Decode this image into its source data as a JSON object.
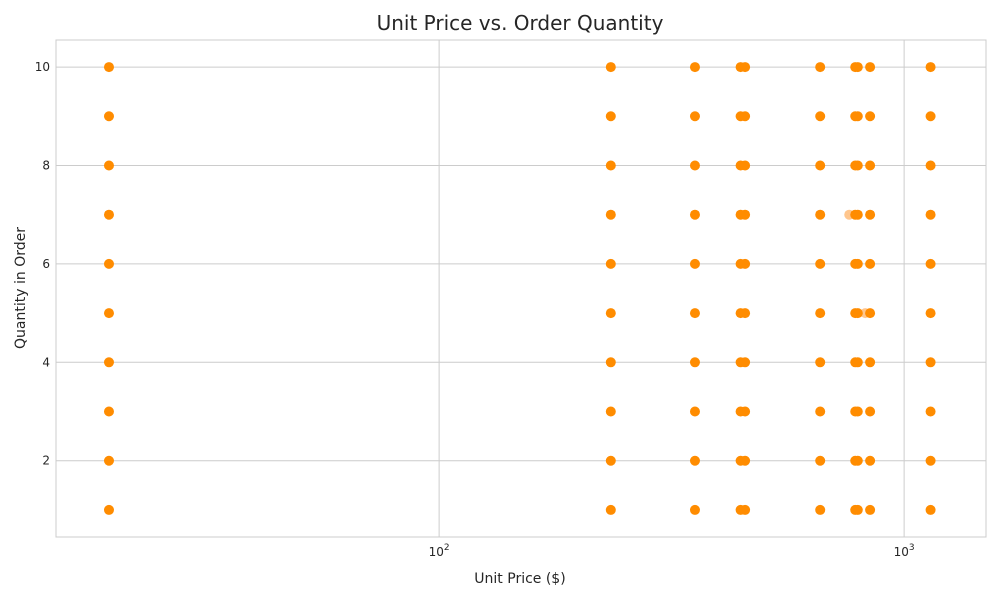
{
  "chart_data": {
    "type": "scatter",
    "title": "Unit Price vs. Order Quantity",
    "xlabel": "Unit Price ($)",
    "ylabel": "Quantity in Order",
    "xscale": "log",
    "xlim": [
      15,
      1500
    ],
    "ylim": [
      0.45,
      10.55
    ],
    "grid": true,
    "x_ticks": [
      {
        "value": 100,
        "label": "10",
        "exp": "2"
      },
      {
        "value": 1000,
        "label": "10",
        "exp": "3"
      }
    ],
    "y_ticks": [
      2,
      4,
      6,
      8,
      10
    ],
    "marker_color": "#ff8c00",
    "marker_faint_color": "#ffb870",
    "series": [
      {
        "x": [
          19.5,
          19.5,
          19.5,
          19.5,
          19.5,
          19.5,
          19.5,
          19.5,
          19.5,
          19.5,
          234,
          234,
          234,
          234,
          234,
          234,
          234,
          234,
          234,
          234,
          355,
          355,
          355,
          355,
          355,
          355,
          355,
          355,
          355,
          355,
          445,
          445,
          445,
          445,
          445,
          445,
          445,
          445,
          445,
          445,
          455,
          455,
          455,
          455,
          455,
          455,
          455,
          455,
          455,
          455,
          660,
          660,
          660,
          660,
          660,
          660,
          660,
          660,
          660,
          660,
          785,
          785,
          785,
          785,
          785,
          785,
          785,
          785,
          785,
          785,
          795,
          795,
          795,
          795,
          795,
          795,
          795,
          795,
          795,
          795,
          845,
          845,
          845,
          845,
          845,
          845,
          845,
          845,
          845,
          845,
          1140,
          1140,
          1140,
          1140,
          1140,
          1140,
          1140,
          1140,
          1140,
          1140
        ],
        "y": [
          1,
          2,
          3,
          4,
          5,
          6,
          7,
          8,
          9,
          10,
          1,
          2,
          3,
          4,
          5,
          6,
          7,
          8,
          9,
          10,
          1,
          2,
          3,
          4,
          5,
          6,
          7,
          8,
          9,
          10,
          1,
          2,
          3,
          4,
          5,
          6,
          7,
          8,
          9,
          10,
          1,
          2,
          3,
          4,
          5,
          6,
          7,
          8,
          9,
          10,
          1,
          2,
          3,
          4,
          5,
          6,
          7,
          8,
          9,
          10,
          1,
          2,
          3,
          4,
          5,
          6,
          7,
          8,
          9,
          10,
          1,
          2,
          3,
          4,
          5,
          6,
          7,
          8,
          9,
          10,
          1,
          2,
          3,
          4,
          5,
          6,
          7,
          8,
          9,
          10,
          1,
          2,
          3,
          4,
          5,
          6,
          7,
          8,
          9,
          10
        ]
      }
    ],
    "faint_points": [
      {
        "x": 762,
        "y": 7
      },
      {
        "x": 825,
        "y": 5
      }
    ]
  }
}
